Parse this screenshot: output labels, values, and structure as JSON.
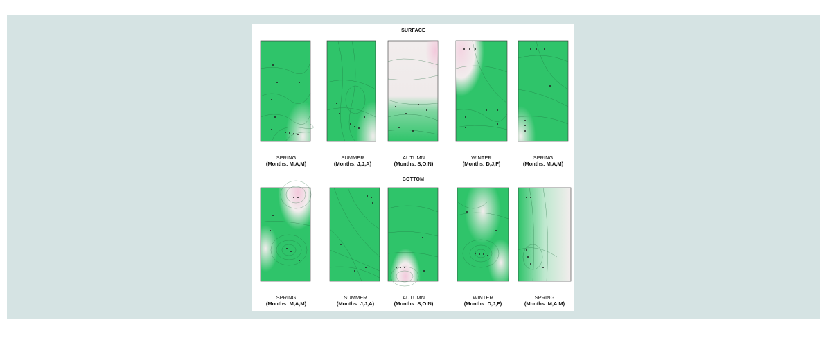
{
  "figure": {
    "rows": [
      {
        "title": "SURFACE",
        "panels": [
          {
            "season": "SPRING",
            "months": "(Months: M,A,M)"
          },
          {
            "season": "SUMMER",
            "months": "(Months: J,J,A)"
          },
          {
            "season": "AUTUMN",
            "months": "(Months: S,O,N)"
          },
          {
            "season": "WINTER",
            "months": "(Months: D,J,F)"
          },
          {
            "season": "SPRING",
            "months": "(Months: M,A,M)"
          }
        ]
      },
      {
        "title": "BOTTOM",
        "panels": [
          {
            "season": "SPRING",
            "months": "(Months: M,A,M)"
          },
          {
            "season": "SUMMER",
            "months": "(Months: J,J,A)"
          },
          {
            "season": "AUTUMN",
            "months": "(Months: S,O,N)"
          },
          {
            "season": "WINTER",
            "months": "(Months: D,J,F)"
          },
          {
            "season": "SPRING",
            "months": "(Months: M,A,M)"
          }
        ]
      }
    ],
    "colors": {
      "green": "#2fc46a",
      "pale": "#f2eded",
      "pink": "#f3c9dc"
    }
  }
}
